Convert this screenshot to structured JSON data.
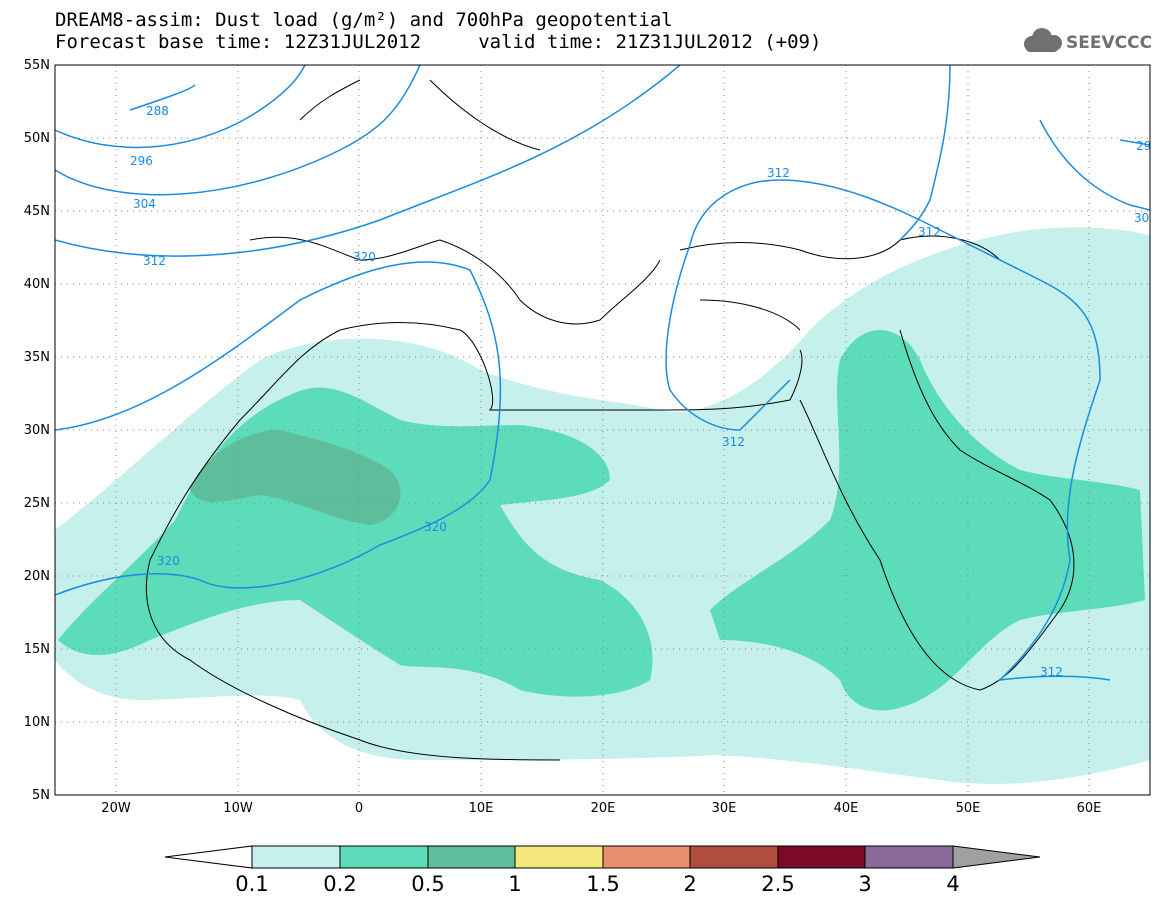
{
  "title": {
    "line1": "DREAM8-assim: Dust load (g/m²) and 700hPa geopotential",
    "line2": "Forecast base time: 12Z31JUL2012     valid time: 21Z31JUL2012 (+09)"
  },
  "logo": {
    "text": "SEEVCCC",
    "icon": "cloud-icon"
  },
  "map": {
    "projection": "lat-lon",
    "lon_range": [
      -25,
      65
    ],
    "lat_range": [
      5,
      55
    ],
    "lat_ticks": [
      "5N",
      "10N",
      "15N",
      "20N",
      "25N",
      "30N",
      "35N",
      "40N",
      "45N",
      "50N",
      "55N"
    ],
    "lon_ticks": [
      "20W",
      "10W",
      "0",
      "10E",
      "20E",
      "30E",
      "40E",
      "50E",
      "60E"
    ],
    "grid": "dotted",
    "contour_color": "#1a8ce0",
    "contour_labels": [
      "288",
      "296",
      "304",
      "312",
      "320",
      "320",
      "320",
      "312",
      "312",
      "312",
      "312",
      "29",
      "30"
    ]
  },
  "colorbar": {
    "colors": [
      "#c6f0eb",
      "#5ddcb9",
      "#5ebd9a",
      "#f4e87c",
      "#e69070",
      "#b04c40",
      "#7a0a28",
      "#8a6a9a"
    ],
    "over_color": "#a0a0a0",
    "labels": [
      "0.1",
      "0.2",
      "0.5",
      "1",
      "1.5",
      "2",
      "2.5",
      "3",
      "4"
    ]
  }
}
